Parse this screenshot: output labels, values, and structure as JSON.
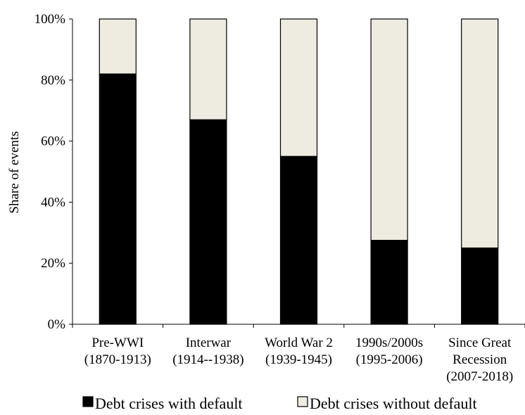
{
  "chart_data": {
    "type": "bar",
    "stacked": true,
    "categories": [
      [
        "Pre-WWI",
        "(1870-1913)"
      ],
      [
        "Interwar",
        "(1914--1938)"
      ],
      [
        "World War 2",
        "(1939-1945)"
      ],
      [
        "1990s/2000s",
        "(1995-2006)"
      ],
      [
        "Since Great",
        "Recession",
        "(2007-2018)"
      ]
    ],
    "series": [
      {
        "name": "Debt crises with default",
        "values": [
          0.82,
          0.67,
          0.55,
          0.275,
          0.25
        ],
        "color": "#000000"
      },
      {
        "name": "Debt crises without default",
        "values": [
          0.18,
          0.33,
          0.45,
          0.725,
          0.75
        ],
        "color": "#eeece1"
      }
    ],
    "ylabel": "Share of events",
    "ylim": [
      0,
      1
    ],
    "yticks": [
      0,
      0.2,
      0.4,
      0.6,
      0.8,
      1.0
    ],
    "ytick_labels": [
      "0%",
      "20%",
      "40%",
      "60%",
      "80%",
      "100%"
    ],
    "grid": false,
    "legend_position": "bottom"
  }
}
